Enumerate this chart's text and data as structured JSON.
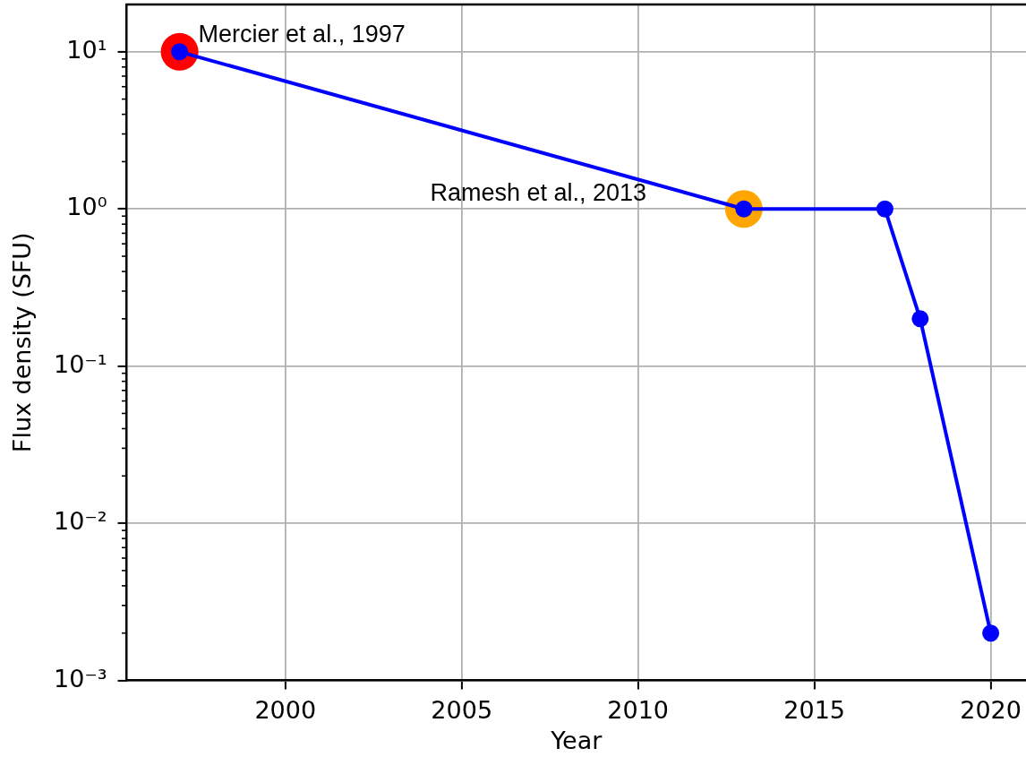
{
  "chart_data": {
    "type": "line",
    "xlabel": "Year",
    "ylabel": "Flux density (SFU)",
    "x": [
      1997,
      2013,
      2017,
      2018,
      2020
    ],
    "series": [
      {
        "color": "#0000ff",
        "values": [
          10,
          1,
          1,
          0.2,
          0.002
        ]
      },
      {
        "type": "scatter",
        "color": "#ff0000",
        "x": [
          1997
        ],
        "values": [
          10
        ]
      },
      {
        "type": "scatter",
        "color": "#ffa500",
        "x": [
          2013
        ],
        "values": [
          1
        ]
      }
    ],
    "marker": "circle",
    "log": "y",
    "grid": true,
    "xlim": [
      1995.5,
      2021
    ],
    "xticks": [
      2000,
      2005,
      2010,
      2015,
      2020
    ],
    "ylim": [
      0.001,
      20
    ],
    "yticks": [
      {
        "value": 0.001,
        "label": "10⁻³"
      },
      {
        "value": 0.002,
        "label": null
      },
      {
        "value": 0.003,
        "label": null
      },
      {
        "value": 0.004,
        "label": null
      },
      {
        "value": 0.005,
        "label": null
      },
      {
        "value": 0.006,
        "label": null
      },
      {
        "value": 0.007,
        "label": null
      },
      {
        "value": 0.008,
        "label": null
      },
      {
        "value": 0.009,
        "label": null
      },
      {
        "value": 0.01,
        "label": "10⁻²"
      },
      {
        "value": 0.02,
        "label": null
      },
      {
        "value": 0.03,
        "label": null
      },
      {
        "value": 0.04,
        "label": null
      },
      {
        "value": 0.05,
        "label": null
      },
      {
        "value": 0.06,
        "label": null
      },
      {
        "value": 0.07,
        "label": null
      },
      {
        "value": 0.08,
        "label": null
      },
      {
        "value": 0.09,
        "label": null
      },
      {
        "value": 0.1,
        "label": "10⁻¹"
      },
      {
        "value": 0.2,
        "label": null
      },
      {
        "value": 0.3,
        "label": null
      },
      {
        "value": 0.4,
        "label": null
      },
      {
        "value": 0.5,
        "label": null
      },
      {
        "value": 0.6,
        "label": null
      },
      {
        "value": 0.7,
        "label": null
      },
      {
        "value": 0.8,
        "label": null
      },
      {
        "value": 0.9,
        "label": null
      },
      {
        "value": 1,
        "label": "10⁰"
      },
      {
        "value": 2,
        "label": null
      },
      {
        "value": 3,
        "label": null
      },
      {
        "value": 4,
        "label": null
      },
      {
        "value": 5,
        "label": null
      },
      {
        "value": 6,
        "label": null
      },
      {
        "value": 7,
        "label": null
      },
      {
        "value": 8,
        "label": null
      },
      {
        "value": 9,
        "label": null
      },
      {
        "value": 10,
        "label": "10¹"
      }
    ],
    "annotations": [
      {
        "text": "Mercier et al., 1997",
        "x": 1997,
        "y": 10
      },
      "Ramesh et al., 2013"
    ]
  }
}
